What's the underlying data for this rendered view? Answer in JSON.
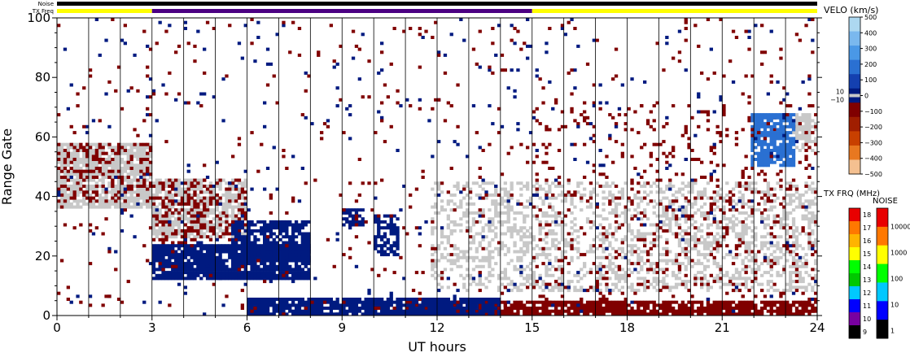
{
  "chart_data": {
    "type": "heatmap",
    "xlabel": "UT hours",
    "ylabel": "Range Gate",
    "x_ticks": [
      0,
      3,
      6,
      9,
      12,
      15,
      18,
      21,
      24
    ],
    "y_ticks": [
      0,
      20,
      40,
      60,
      80,
      100
    ],
    "xlim": [
      0,
      24
    ],
    "ylim": [
      0,
      100
    ],
    "hour_gridlines": true,
    "top_strips": {
      "noise_label": "Noise",
      "txfreq_label": "TX Freq",
      "noise_color": "#000000",
      "txfreq_segments": [
        {
          "from": 0,
          "to": 3,
          "color": "#ffff00"
        },
        {
          "from": 3,
          "to": 15,
          "color": "#4b0082"
        },
        {
          "from": 15,
          "to": 24,
          "color": "#ffff00"
        }
      ]
    },
    "velocity_scale": {
      "label": "VELO (km/s)",
      "ticks": [
        500,
        400,
        300,
        200,
        100,
        0,
        -100,
        -200,
        -300,
        -400,
        -500
      ],
      "tick_labels": [
        "500",
        "400",
        "300",
        "200",
        "100",
        "0",
        "−100",
        "−200",
        "−300",
        "−400",
        "−500"
      ],
      "side_labels": [
        "10",
        "−10"
      ],
      "colors": [
        "#add8f0",
        "#7ab8ee",
        "#4a98e6",
        "#2a70d2",
        "#1440b0",
        "#001a80",
        "#800000",
        "#a01e00",
        "#c84000",
        "#e87820",
        "#f4c090"
      ],
      "ground_scatter_color": "#c8c8c8"
    },
    "txfreq_scale": {
      "label": "TX FRQ (MHz)",
      "ticks": [
        "18",
        "17",
        "16",
        "15",
        "14",
        "13",
        "12",
        "11",
        "10",
        "9"
      ],
      "colors": [
        "#e80000",
        "#ff7800",
        "#ffb400",
        "#ffff00",
        "#00ff00",
        "#00c800",
        "#00c8ff",
        "#0000ff",
        "#7800a0",
        "#000000"
      ]
    },
    "noise_scale": {
      "label": "NOISE",
      "ticks": [
        "10000",
        "1000",
        "100",
        "10",
        "1"
      ],
      "colors": [
        "#e80000",
        "#ff7800",
        "#ffff00",
        "#00ff00",
        "#00c8ff",
        "#0000ff",
        "#000000"
      ]
    },
    "regions": [
      {
        "label": "ground scatter",
        "color": "#c8c8c8",
        "x": [
          0,
          3
        ],
        "y": [
          36,
          58
        ],
        "density": 0.8
      },
      {
        "label": "ground scatter",
        "color": "#c8c8c8",
        "x": [
          3,
          6
        ],
        "y": [
          26,
          46
        ],
        "density": 0.7
      },
      {
        "label": "ground scatter",
        "color": "#c8c8c8",
        "x": [
          11.8,
          24
        ],
        "y": [
          8,
          45
        ],
        "density": 0.35
      },
      {
        "label": "ground scatter",
        "color": "#c8c8c8",
        "x": [
          23.2,
          24
        ],
        "y": [
          55,
          68
        ],
        "density": 0.6
      },
      {
        "label": "negative velocity",
        "color": "#800000",
        "x": [
          0,
          3
        ],
        "y": [
          38,
          58
        ],
        "density": 0.25
      },
      {
        "label": "negative velocity",
        "color": "#800000",
        "x": [
          3,
          6
        ],
        "y": [
          24,
          46
        ],
        "density": 0.3
      },
      {
        "label": "negative velocity",
        "color": "#800000",
        "x": [
          11,
          24
        ],
        "y": [
          0,
          5
        ],
        "density": 0.85
      },
      {
        "label": "negative velocity",
        "color": "#800000",
        "x": [
          15,
          24
        ],
        "y": [
          5,
          72
        ],
        "density": 0.07
      },
      {
        "label": "positive velocity",
        "color": "#001a80",
        "x": [
          3,
          8
        ],
        "y": [
          12,
          24
        ],
        "density": 0.9
      },
      {
        "label": "positive velocity",
        "color": "#001a80",
        "x": [
          5.5,
          8
        ],
        "y": [
          18,
          32
        ],
        "density": 0.75
      },
      {
        "label": "positive velocity",
        "color": "#001a80",
        "x": [
          6,
          14
        ],
        "y": [
          0,
          6
        ],
        "density": 0.9
      },
      {
        "label": "positive velocity",
        "color": "#001a80",
        "x": [
          9,
          9.7
        ],
        "y": [
          30,
          36
        ],
        "density": 0.7
      },
      {
        "label": "positive velocity",
        "color": "#001a80",
        "x": [
          10,
          10.8
        ],
        "y": [
          20,
          34
        ],
        "density": 0.7
      },
      {
        "label": "positive velocity",
        "color": "#2a70d2",
        "x": [
          21.9,
          23.3
        ],
        "y": [
          50,
          68
        ],
        "density": 0.85
      },
      {
        "label": "scattered echoes",
        "color": "#001a80",
        "x": [
          0,
          24
        ],
        "y": [
          0,
          100
        ],
        "density": 0.015
      },
      {
        "label": "scattered echoes",
        "color": "#800000",
        "x": [
          0,
          24
        ],
        "y": [
          0,
          100
        ],
        "density": 0.02
      }
    ]
  }
}
